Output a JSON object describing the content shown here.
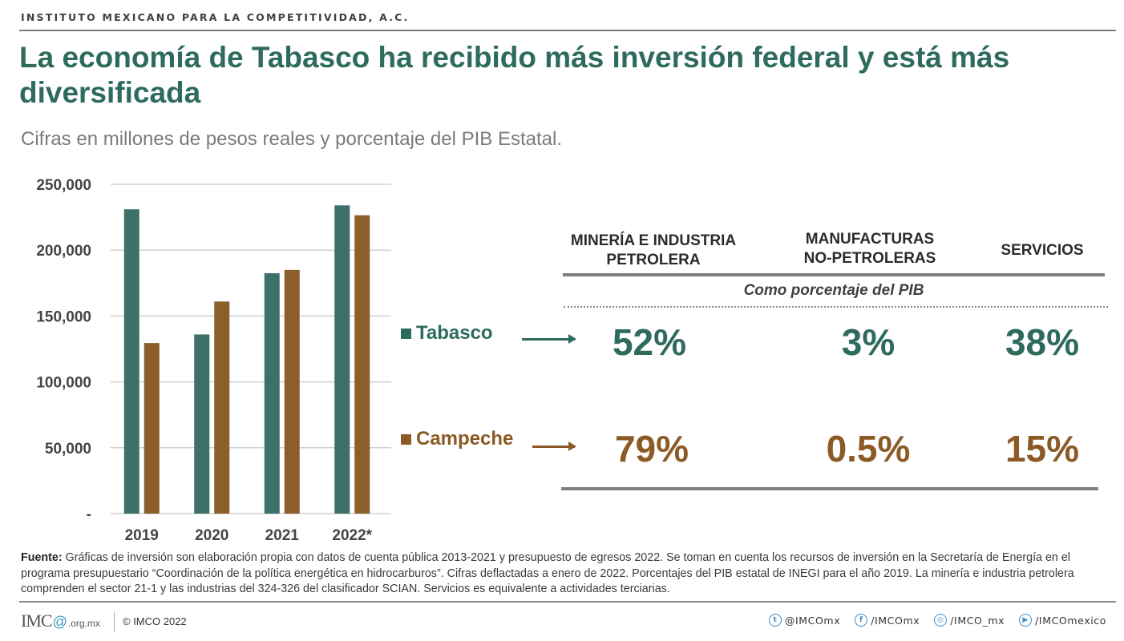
{
  "header": {
    "org": "INSTITUTO MEXICANO PARA LA COMPETITIVIDAD, A.C.",
    "title": "La economía de Tabasco ha recibido más inversión federal y está más diversificada",
    "subtitle": "Cifras en millones de pesos reales y porcentaje del PIB Estatal."
  },
  "colors": {
    "tabasco": "#3d7068",
    "campeche": "#8b5e2b"
  },
  "chart_data": {
    "type": "bar",
    "title": "",
    "xlabel": "",
    "ylabel": "",
    "categories": [
      "2019",
      "2020",
      "2021",
      "2022*"
    ],
    "series": [
      {
        "name": "Tabasco",
        "color": "#3d7068",
        "values": [
          231000,
          136000,
          182500,
          234000
        ]
      },
      {
        "name": "Campeche",
        "color": "#8b5e2b",
        "values": [
          129500,
          161000,
          185000,
          226500
        ]
      }
    ],
    "ylim": [
      0,
      250000
    ],
    "yticks": [
      0,
      50000,
      100000,
      150000,
      200000,
      250000
    ],
    "ytick_labels": [
      "-",
      "50,000",
      "100,000",
      "150,000",
      "200,000",
      "250,000"
    ],
    "grid": true,
    "legend": "right (row labels of table)"
  },
  "table": {
    "columns": [
      "MINERÍA E INDUSTRIA PETROLERA",
      "MANUFACTURAS NO-PETROLERAS",
      "SERVICIOS"
    ],
    "column_lines": [
      [
        "MINERÍA E INDUSTRIA",
        "PETROLERA"
      ],
      [
        "MANUFACTURAS",
        "NO-PETROLERAS"
      ],
      [
        "SERVICIOS"
      ]
    ],
    "subheader": "Como porcentaje del PIB",
    "rows": [
      {
        "label": "Tabasco",
        "values": [
          "52%",
          "3%",
          "38%"
        ]
      },
      {
        "label": "Campeche",
        "values": [
          "79%",
          "0.5%",
          "15%"
        ]
      }
    ]
  },
  "footer": {
    "source_label": "Fuente:",
    "source_text": " Gráficas de inversión son elaboración propia con datos de cuenta pública 2013-2021 y presupuesto de egresos 2022. Se toman en cuenta los recursos de inversión en la Secretaría de Energía en el programa presupuestario “Coordinación de la política energética en hidrocarburos”. Cifras deflactadas a enero de 2022. Porcentajes del PIB estatal de INEGI para el año 2019. La minería e industria petrolera comprenden el sector 21-1 y las industrias del 324-326 del clasificador SCIAN. Servicios es equivalente a actividades terciarias.",
    "logo_main": "IMC",
    "logo_domain": ".org.mx",
    "copyright": "© IMCO 2022",
    "socials": [
      {
        "icon": "twitter-icon",
        "glyph": "t",
        "handle": "@IMCOmx"
      },
      {
        "icon": "facebook-icon",
        "glyph": "f",
        "handle": "/IMCOmx"
      },
      {
        "icon": "instagram-icon",
        "glyph": "◎",
        "handle": "/IMCO_mx"
      },
      {
        "icon": "youtube-icon",
        "glyph": "▶",
        "handle": "/IMCOmexico"
      }
    ]
  }
}
